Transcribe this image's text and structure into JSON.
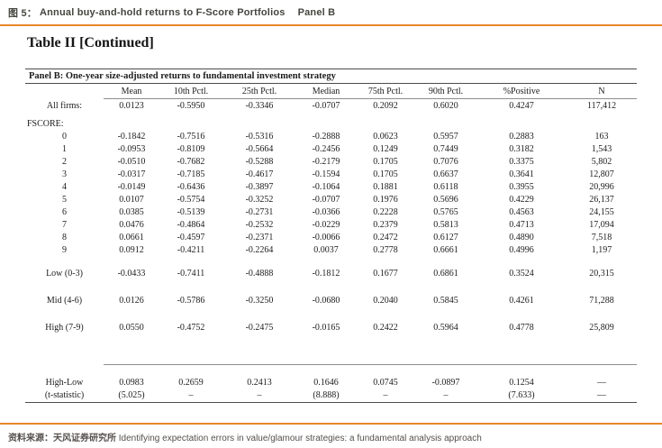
{
  "fig_header": {
    "label": "图 5：",
    "title": "Annual buy-and-hold returns to F-Score Portfolios",
    "panel": "Panel B"
  },
  "table": {
    "title": "Table II [Continued]",
    "panel_caption": "Panel B: One-year size-adjusted returns to fundamental investment strategy",
    "columns": [
      "Mean",
      "10th Pctl.",
      "25th Pctl.",
      "Median",
      "75th Pctl.",
      "90th Pctl.",
      "%Positive",
      "N"
    ],
    "all_firms": {
      "label": "All firms:",
      "values": [
        "0.0123",
        "-0.5950",
        "-0.3346",
        "-0.0707",
        "0.2092",
        "0.6020",
        "0.4247",
        "117,412"
      ]
    },
    "fscore_label": "FSCORE:",
    "fscore_rows": [
      {
        "label": "0",
        "values": [
          "-0.1842",
          "-0.7516",
          "-0.5316",
          "-0.2888",
          "0.0623",
          "0.5957",
          "0.2883",
          "163"
        ]
      },
      {
        "label": "1",
        "values": [
          "-0.0953",
          "-0.8109",
          "-0.5664",
          "-0.2456",
          "0.1249",
          "0.7449",
          "0.3182",
          "1,543"
        ]
      },
      {
        "label": "2",
        "values": [
          "-0.0510",
          "-0.7682",
          "-0.5288",
          "-0.2179",
          "0.1705",
          "0.7076",
          "0.3375",
          "5,802"
        ]
      },
      {
        "label": "3",
        "values": [
          "-0.0317",
          "-0.7185",
          "-0.4617",
          "-0.1594",
          "0.1705",
          "0.6637",
          "0.3641",
          "12,807"
        ]
      },
      {
        "label": "4",
        "values": [
          "-0.0149",
          "-0.6436",
          "-0.3897",
          "-0.1064",
          "0.1881",
          "0.6118",
          "0.3955",
          "20,996"
        ]
      },
      {
        "label": "5",
        "values": [
          "0.0107",
          "-0.5754",
          "-0.3252",
          "-0.0707",
          "0.1976",
          "0.5696",
          "0.4229",
          "26,137"
        ]
      },
      {
        "label": "6",
        "values": [
          "0.0385",
          "-0.5139",
          "-0.2731",
          "-0.0366",
          "0.2228",
          "0.5765",
          "0.4563",
          "24,155"
        ]
      },
      {
        "label": "7",
        "values": [
          "0.0476",
          "-0.4864",
          "-0.2532",
          "-0.0229",
          "0.2379",
          "0.5813",
          "0.4713",
          "17,094"
        ]
      },
      {
        "label": "8",
        "values": [
          "0.0661",
          "-0.4597",
          "-0.2371",
          "-0.0066",
          "0.2472",
          "0.6127",
          "0.4890",
          "7,518"
        ]
      },
      {
        "label": "9",
        "values": [
          "0.0912",
          "-0.4211",
          "-0.2264",
          "0.0037",
          "0.2778",
          "0.6661",
          "0.4996",
          "1,197"
        ]
      }
    ],
    "group_rows": [
      {
        "label": "Low (0-3)",
        "values": [
          "-0.0433",
          "-0.7411",
          "-0.4888",
          "-0.1812",
          "0.1677",
          "0.6861",
          "0.3524",
          "20,315"
        ]
      },
      {
        "label": "Mid (4-6)",
        "values": [
          "0.0126",
          "-0.5786",
          "-0.3250",
          "-0.0680",
          "0.2040",
          "0.5845",
          "0.4261",
          "71,288"
        ]
      },
      {
        "label": "High (7-9)",
        "values": [
          "0.0550",
          "-0.4752",
          "-0.2475",
          "-0.0165",
          "0.2422",
          "0.5964",
          "0.4778",
          "25,809"
        ]
      }
    ],
    "highlow_rows": [
      {
        "label": "High-Low",
        "values": [
          "0.0983",
          "0.2659",
          "0.2413",
          "0.1646",
          "0.0745",
          "-0.0897",
          "0.1254",
          "—"
        ]
      },
      {
        "label": "(t-statistic)",
        "values": [
          "(5.025)",
          "–",
          "–",
          "(8.888)",
          "–",
          "–",
          "(7.633)",
          "—"
        ]
      }
    ]
  },
  "footer": {
    "source_label": "资料来源：",
    "source_org": "天风证券研究所",
    "reference": "Identifying expectation errors in value/glamour strategies: a fundamental analysis approach"
  },
  "colors": {
    "accent_orange": "#E8872B"
  }
}
